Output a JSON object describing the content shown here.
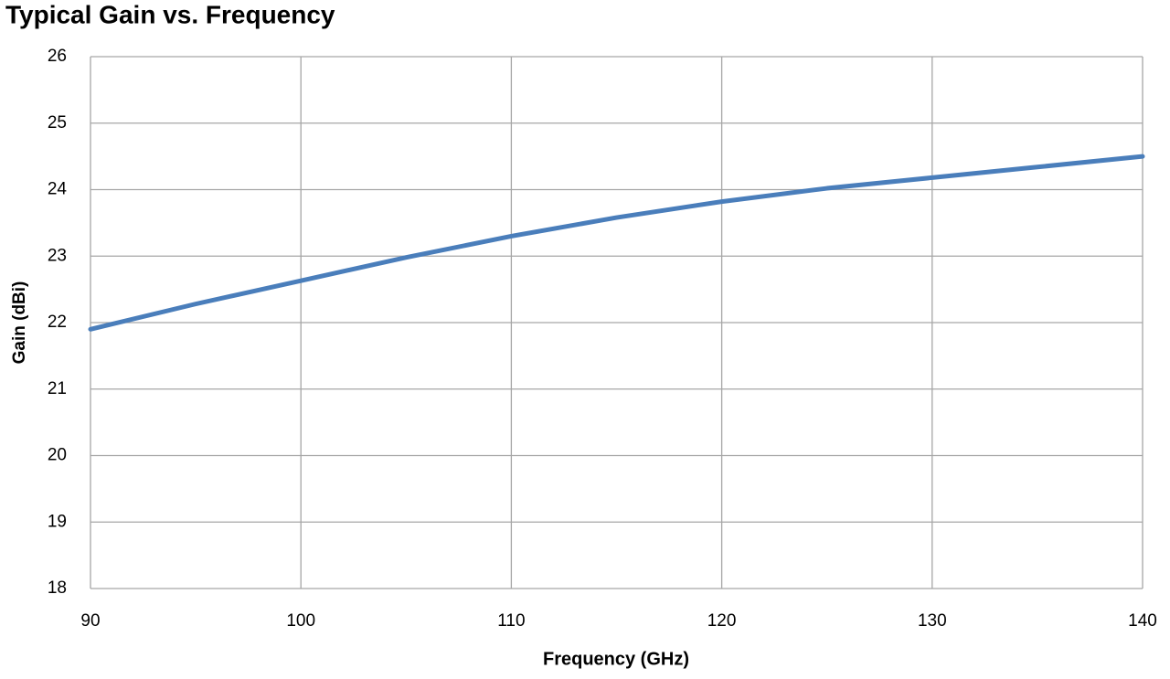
{
  "chart_data": {
    "type": "line",
    "title": "Typical Gain vs. Frequency",
    "x_label": "Frequency (GHz)",
    "y_label": "Gain (dBi)",
    "x": [
      90,
      95,
      100,
      105,
      110,
      115,
      120,
      125,
      130,
      135,
      140
    ],
    "series": [
      {
        "name": "Gain",
        "color": "#4a7ebb",
        "values": [
          21.9,
          22.28,
          22.63,
          22.98,
          23.3,
          23.58,
          23.82,
          24.02,
          24.18,
          24.34,
          24.5
        ]
      }
    ],
    "xlim": [
      90,
      140
    ],
    "xticks": [
      90,
      100,
      110,
      120,
      130,
      140
    ],
    "ylim": [
      18,
      26
    ],
    "yticks": [
      18,
      19,
      20,
      21,
      22,
      23,
      24,
      25,
      26
    ],
    "grid": true
  }
}
